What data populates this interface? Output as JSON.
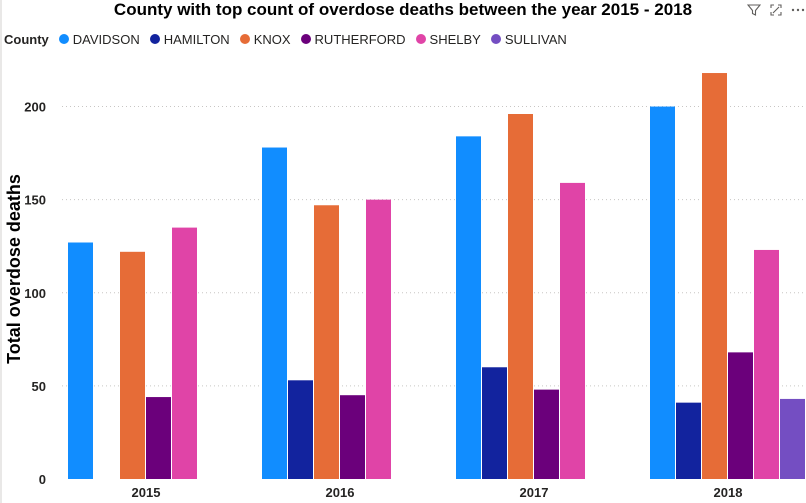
{
  "title": "County with top count of overdose deaths between the year 2015 - 2018",
  "toolbar": {
    "icons": [
      "filter-icon",
      "focus-mode-icon",
      "more-options-icon"
    ]
  },
  "legend": {
    "title": "County"
  },
  "chart_data": {
    "type": "bar",
    "title": "County with top count of overdose deaths between the year 2015 - 2018",
    "xlabel": "",
    "ylabel": "Total overdose deaths",
    "categories": [
      "2015",
      "2016",
      "2017",
      "2018"
    ],
    "ylim": [
      0,
      225
    ],
    "yticks": [
      0,
      50,
      100,
      150,
      200
    ],
    "grid": true,
    "legend_position": "top-left",
    "series": [
      {
        "name": "DAVIDSON",
        "color": "#118DFF",
        "values": [
          127,
          178,
          184,
          200
        ]
      },
      {
        "name": "HAMILTON",
        "color": "#12239E",
        "values": [
          null,
          53,
          60,
          41
        ]
      },
      {
        "name": "KNOX",
        "color": "#E66C37",
        "values": [
          122,
          147,
          196,
          218
        ]
      },
      {
        "name": "RUTHERFORD",
        "color": "#6B007B",
        "values": [
          44,
          45,
          48,
          68
        ]
      },
      {
        "name": "SHELBY",
        "color": "#E044A7",
        "values": [
          135,
          150,
          159,
          123
        ]
      },
      {
        "name": "SULLIVAN",
        "color": "#744EC2",
        "values": [
          null,
          null,
          null,
          43
        ]
      }
    ]
  }
}
